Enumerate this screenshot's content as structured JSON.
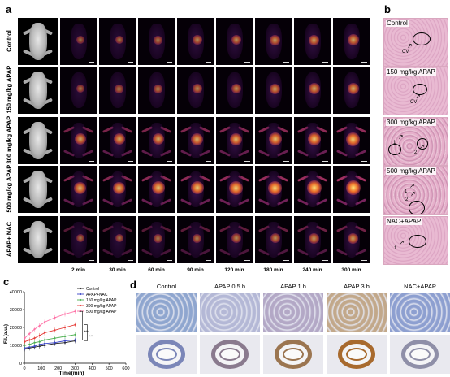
{
  "panels": {
    "a": "a",
    "b": "b",
    "c": "c",
    "d": "d"
  },
  "panel_a": {
    "rows": [
      "Control",
      "150 mg/kg APAP",
      "300 mg/kg APAP",
      "500 mg/kg APAP",
      "APAP+ NAC"
    ],
    "times": [
      "2 min",
      "30 min",
      "60 min",
      "90 min",
      "120 min",
      "180 min",
      "240 min",
      "300 min"
    ]
  },
  "panel_b": {
    "images": [
      {
        "label": "Control",
        "notes": [
          "CV"
        ]
      },
      {
        "label": "150 mg/kg APAP",
        "notes": [
          "CV"
        ]
      },
      {
        "label": "300 mg/kg APAP",
        "notes": [
          "1",
          "2"
        ]
      },
      {
        "label": "500 mg/kg APAP",
        "notes": [
          "1",
          "2"
        ]
      },
      {
        "label": "NAC+APAP",
        "notes": [
          "1"
        ]
      }
    ]
  },
  "panel_d": {
    "titles": [
      "Control",
      "APAP 0.5 h",
      "APAP 1 h",
      "APAP 3 h",
      "NAC+APAP"
    ]
  },
  "chart_data": {
    "type": "line",
    "title": "",
    "xlabel": "Time(min)",
    "ylabel": "F.I.(a.u.)",
    "xlim": [
      0,
      600
    ],
    "ylim": [
      0,
      40000
    ],
    "x_ticks": [
      "0",
      "100",
      "200",
      "300",
      "400",
      "500",
      "600"
    ],
    "y_ticks": [
      "0",
      "10000",
      "20000",
      "30000",
      "40000"
    ],
    "x": [
      2,
      30,
      60,
      90,
      120,
      180,
      240,
      300
    ],
    "series": [
      {
        "name": "Control",
        "color": "#222222",
        "values": [
          8000,
          8500,
          9000,
          9500,
          10000,
          11000,
          11500,
          12500
        ]
      },
      {
        "name": "APAP+NAC",
        "color": "#3b46c9",
        "values": [
          8500,
          9000,
          9500,
          10500,
          11000,
          11500,
          12500,
          13000
        ]
      },
      {
        "name": "150 mg/kg APAP",
        "color": "#4caf50",
        "values": [
          10000,
          10500,
          11500,
          12000,
          13000,
          14000,
          15000,
          16000
        ]
      },
      {
        "name": "300 mg/kg APAP",
        "color": "#e53935",
        "values": [
          12000,
          13000,
          14000,
          15500,
          17000,
          18500,
          20000,
          21500
        ]
      },
      {
        "name": "500 mg/kg APAP",
        "color": "#ff6fa5",
        "values": [
          14000,
          16500,
          19000,
          21000,
          23000,
          25500,
          27500,
          29000
        ]
      }
    ],
    "significance": [
      "***",
      "***"
    ]
  }
}
